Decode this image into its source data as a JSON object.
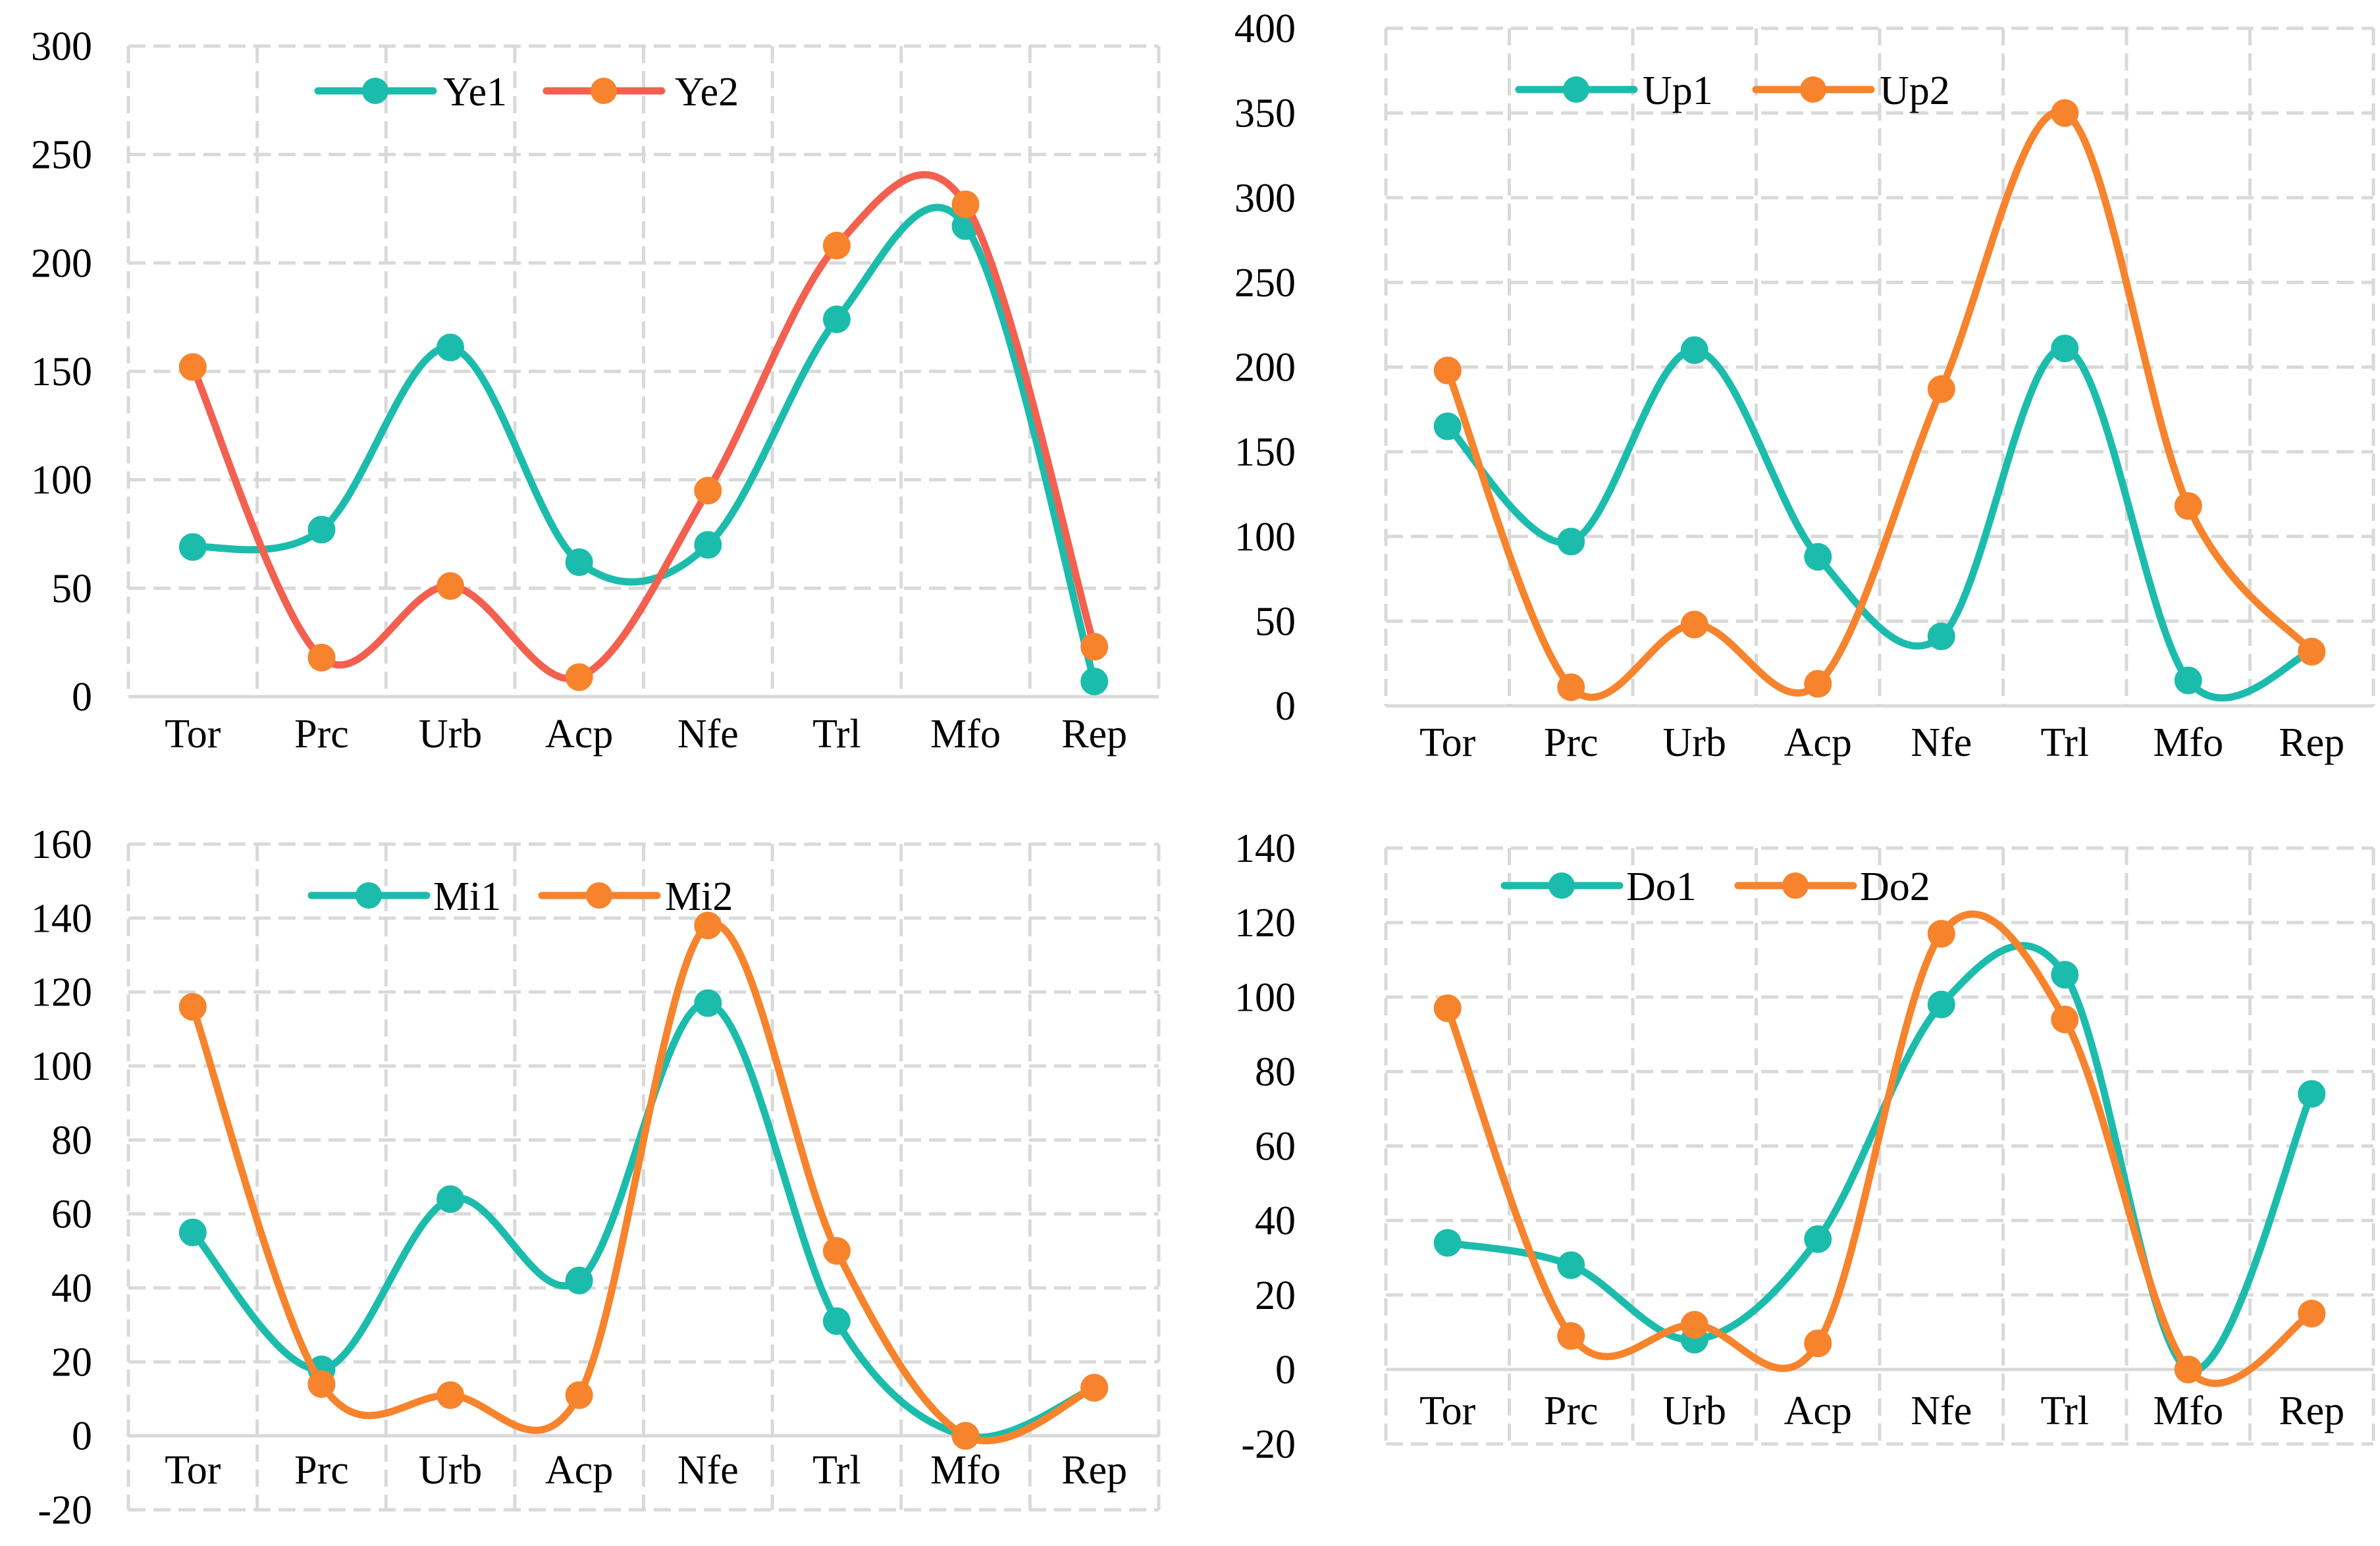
{
  "chart_data": [
    {
      "type": "line",
      "smooth": true,
      "categories": [
        "Tor",
        "Prc",
        "Urb",
        "Acp",
        "Nfe",
        "Trl",
        "Mfo",
        "Rep"
      ],
      "ylim": [
        0,
        300
      ],
      "yticks": [
        0,
        50,
        100,
        150,
        200,
        250,
        300
      ],
      "grid": true,
      "legend": "top-left",
      "series": [
        {
          "name": "Ye1",
          "color": "#1cbcad",
          "values": [
            69,
            77,
            161,
            62,
            70,
            174,
            217,
            7
          ]
        },
        {
          "name": "Ye2",
          "color": "#f36050",
          "marker_color": "#f7832c",
          "values": [
            152,
            18,
            51,
            9,
            95,
            208,
            227,
            23
          ]
        }
      ]
    },
    {
      "type": "line",
      "smooth": true,
      "categories": [
        "Tor",
        "Prc",
        "Urb",
        "Acp",
        "Nfe",
        "Trl",
        "Mfo",
        "Rep"
      ],
      "ylim": [
        0,
        400
      ],
      "yticks": [
        0,
        50,
        100,
        150,
        200,
        250,
        300,
        350,
        400
      ],
      "grid": true,
      "legend": "top-left",
      "series": [
        {
          "name": "Up1",
          "color": "#1cbcad",
          "values": [
            165,
            97,
            210,
            88,
            41,
            211,
            15,
            32
          ]
        },
        {
          "name": "Up2",
          "color": "#f7832c",
          "values": [
            198,
            11,
            48,
            13,
            187,
            350,
            118,
            32
          ]
        }
      ]
    },
    {
      "type": "line",
      "smooth": true,
      "categories": [
        "Tor",
        "Prc",
        "Urb",
        "Acp",
        "Nfe",
        "Trl",
        "Mfo",
        "Rep"
      ],
      "ylim": [
        -20,
        160
      ],
      "yticks": [
        -20,
        0,
        20,
        40,
        60,
        80,
        100,
        120,
        140,
        160
      ],
      "grid": true,
      "legend": "top-left",
      "series": [
        {
          "name": "Mi1",
          "color": "#1cbcad",
          "values": [
            55,
            18,
            64,
            42,
            117,
            31,
            0,
            13
          ]
        },
        {
          "name": "Mi2",
          "color": "#f7832c",
          "values": [
            116,
            14,
            11,
            11,
            138,
            50,
            0,
            13
          ]
        }
      ]
    },
    {
      "type": "line",
      "smooth": true,
      "categories": [
        "Tor",
        "Prc",
        "Urb",
        "Acp",
        "Nfe",
        "Trl",
        "Mfo",
        "Rep"
      ],
      "ylim": [
        -20,
        140
      ],
      "yticks": [
        -20,
        0,
        20,
        40,
        60,
        80,
        100,
        120,
        140
      ],
      "grid": true,
      "legend": "top-left",
      "series": [
        {
          "name": "Do1",
          "color": "#1cbcad",
          "values": [
            34,
            28,
            8,
            35,
            98,
            106,
            0,
            74
          ]
        },
        {
          "name": "Do2",
          "color": "#f7832c",
          "values": [
            97,
            9,
            12,
            7,
            117,
            94,
            0,
            15
          ]
        }
      ]
    }
  ]
}
